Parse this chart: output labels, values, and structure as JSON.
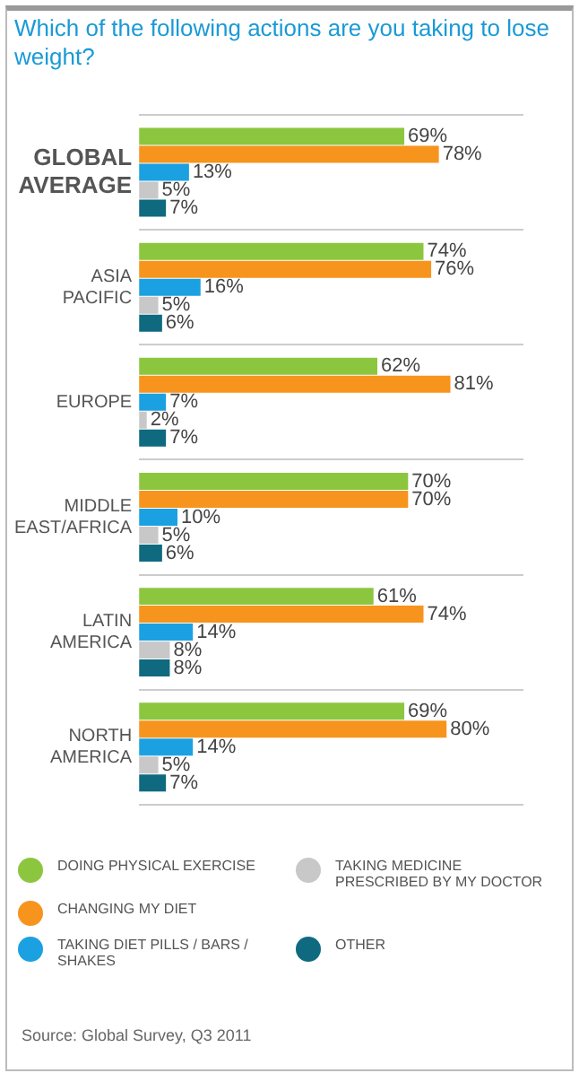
{
  "chart_data": {
    "type": "bar",
    "orientation": "horizontal",
    "title": "Which of the following actions are you taking to lose weight?",
    "categories": [
      "GLOBAL AVERAGE",
      "ASIA PACIFIC",
      "EUROPE",
      "MIDDLE EAST/AFRICA",
      "LATIN AMERICA",
      "NORTH AMERICA"
    ],
    "series": [
      {
        "name": "DOING PHYSICAL EXERCISE",
        "color": "#8cc63f",
        "values": [
          69,
          74,
          62,
          70,
          61,
          69
        ],
        "value_labels": [
          "69%",
          "74%",
          "62%",
          "70%",
          "61%",
          "69%"
        ]
      },
      {
        "name": "CHANGING MY DIET",
        "color": "#f7941d",
        "values": [
          78,
          76,
          81,
          70,
          74,
          80
        ],
        "value_labels": [
          "78%",
          "76%",
          "81%",
          "70%",
          "74%",
          "80%"
        ]
      },
      {
        "name": "TAKING DIET PILLS / BARS / SHAKES",
        "color": "#1ba1e2",
        "values": [
          13,
          16,
          7,
          10,
          14,
          14
        ],
        "value_labels": [
          "13%",
          "16%",
          "7%",
          "10%",
          "14%",
          "14%"
        ]
      },
      {
        "name": "TAKING MEDICINE PRESCRIBED BY MY DOCTOR",
        "color": "#c8c8c8",
        "values": [
          5,
          5,
          2,
          5,
          8,
          5
        ],
        "value_labels": [
          "5%",
          "5%",
          "2%",
          "5%",
          "8%",
          "5%"
        ]
      },
      {
        "name": "OTHER",
        "color": "#0f6a80",
        "values": [
          7,
          6,
          7,
          6,
          8,
          7
        ],
        "value_labels": [
          "7%",
          "6%",
          "7%",
          "6%",
          "8%",
          "7%"
        ]
      }
    ],
    "xlim": [
      0,
      100
    ],
    "tick_labels": "y",
    "grid": "y",
    "legend": "bottom",
    "annotations": [
      "Source: Global Survey, Q3 2011"
    ]
  }
}
